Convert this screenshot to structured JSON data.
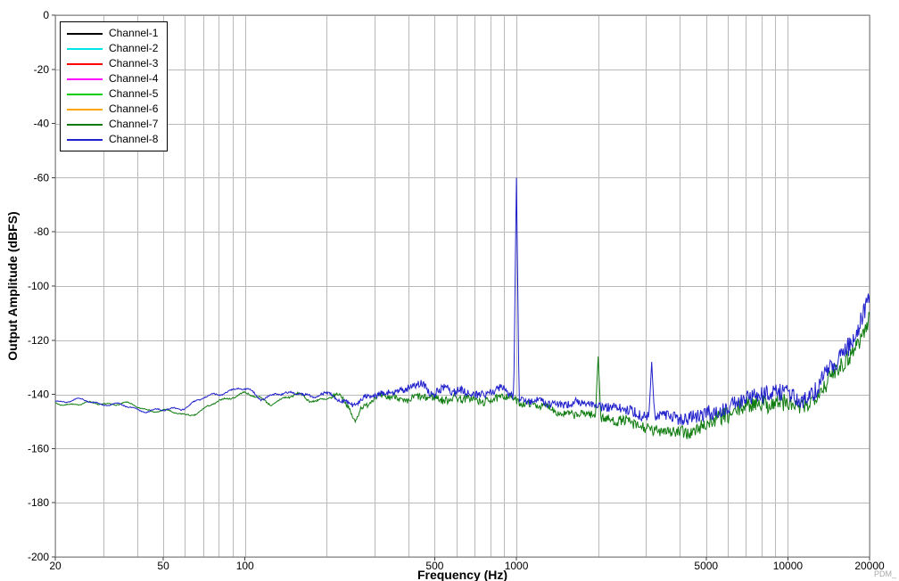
{
  "watermark": "PDM_",
  "chart_data": {
    "type": "line",
    "title": "",
    "xlabel": "Frequency (Hz)",
    "ylabel": "Output Amplitude (dBFS)",
    "x_scale": "log",
    "xlim": [
      20,
      20000
    ],
    "ylim": [
      -200,
      0
    ],
    "grid": true,
    "y_ticks": [
      0,
      -20,
      -40,
      -60,
      -80,
      -100,
      -120,
      -140,
      -160,
      -180,
      -200
    ],
    "x_gridlines": [
      20,
      30,
      40,
      50,
      60,
      70,
      80,
      90,
      100,
      200,
      300,
      400,
      500,
      600,
      700,
      800,
      900,
      1000,
      2000,
      3000,
      4000,
      5000,
      6000,
      7000,
      8000,
      9000,
      10000,
      20000
    ],
    "x_ticks": [
      {
        "value": 20,
        "label": "20"
      },
      {
        "value": 50,
        "label": "50"
      },
      {
        "value": 100,
        "label": "100"
      },
      {
        "value": 500,
        "label": "500"
      },
      {
        "value": 1000,
        "label": "1000"
      },
      {
        "value": 5000,
        "label": "5000"
      },
      {
        "value": 10000,
        "label": "10000"
      },
      {
        "value": 20000,
        "label": "20000"
      }
    ],
    "legend": {
      "position": "top-left",
      "entries": [
        {
          "label": "Channel-1",
          "color": "#000000"
        },
        {
          "label": "Channel-2",
          "color": "#00E5E5"
        },
        {
          "label": "Channel-3",
          "color": "#FF0000"
        },
        {
          "label": "Channel-4",
          "color": "#FF00FF"
        },
        {
          "label": "Channel-5",
          "color": "#00CC00"
        },
        {
          "label": "Channel-6",
          "color": "#FFA500"
        },
        {
          "label": "Channel-7",
          "color": "#107C10"
        },
        {
          "label": "Channel-8",
          "color": "#2020CC"
        }
      ]
    },
    "spike_halfwidth": 0.01,
    "noise": {
      "smooth_amp": [
        [
          20,
          1.0
        ],
        [
          80,
          1.3
        ],
        [
          150,
          1.5
        ],
        [
          400,
          1.6
        ],
        [
          1000,
          1.2
        ],
        [
          3000,
          1.0
        ],
        [
          20000,
          1.2
        ]
      ],
      "jitter_amp": [
        [
          20,
          0.15
        ],
        [
          100,
          0.25
        ],
        [
          200,
          0.5
        ],
        [
          350,
          1.3
        ],
        [
          600,
          1.6
        ],
        [
          900,
          1.4
        ],
        [
          1200,
          1.2
        ],
        [
          2000,
          1.6
        ],
        [
          3000,
          2.2
        ],
        [
          4500,
          2.6
        ],
        [
          6000,
          3.2
        ],
        [
          8000,
          3.4
        ],
        [
          10000,
          3.4
        ],
        [
          11500,
          3.0
        ],
        [
          13000,
          3.2
        ],
        [
          16000,
          3.6
        ],
        [
          20000,
          3.4
        ]
      ],
      "waves": [
        [
          0.55,
          41
        ],
        [
          0.35,
          89
        ],
        [
          0.25,
          17
        ]
      ]
    },
    "series": [
      {
        "name": "Channel-7",
        "color": "#107C10",
        "seed": 7,
        "spikes": [
          [
            2000,
            -126
          ]
        ],
        "envelope": [
          [
            20,
            -143
          ],
          [
            25,
            -143.5
          ],
          [
            30,
            -143
          ],
          [
            36,
            -144
          ],
          [
            44,
            -145.5
          ],
          [
            52,
            -146.5
          ],
          [
            60,
            -147
          ],
          [
            70,
            -146
          ],
          [
            80,
            -143
          ],
          [
            90,
            -140.5
          ],
          [
            100,
            -140
          ],
          [
            110,
            -141.5
          ],
          [
            125,
            -142.5
          ],
          [
            140,
            -141
          ],
          [
            160,
            -140.5
          ],
          [
            180,
            -142
          ],
          [
            200,
            -142
          ],
          [
            225,
            -141.5
          ],
          [
            240,
            -144
          ],
          [
            255,
            -150
          ],
          [
            268,
            -144
          ],
          [
            300,
            -142
          ],
          [
            330,
            -140.5
          ],
          [
            360,
            -140
          ],
          [
            400,
            -142.5
          ],
          [
            440,
            -142
          ],
          [
            480,
            -141.5
          ],
          [
            520,
            -141
          ],
          [
            570,
            -142
          ],
          [
            620,
            -142
          ],
          [
            680,
            -141.5
          ],
          [
            750,
            -141.5
          ],
          [
            820,
            -142
          ],
          [
            900,
            -141
          ],
          [
            1000,
            -142
          ],
          [
            1100,
            -143.5
          ],
          [
            1250,
            -145
          ],
          [
            1400,
            -146
          ],
          [
            1600,
            -147
          ],
          [
            1800,
            -147.5
          ],
          [
            2000,
            -148
          ],
          [
            2300,
            -149.5
          ],
          [
            2600,
            -151
          ],
          [
            3000,
            -152.5
          ],
          [
            3500,
            -153.5
          ],
          [
            4000,
            -154
          ],
          [
            4500,
            -153
          ],
          [
            5000,
            -151.5
          ],
          [
            5500,
            -149.5
          ],
          [
            6000,
            -147.5
          ],
          [
            6500,
            -146
          ],
          [
            7000,
            -144.5
          ],
          [
            7500,
            -143.5
          ],
          [
            8000,
            -143
          ],
          [
            8700,
            -142.5
          ],
          [
            9500,
            -142.5
          ],
          [
            10200,
            -143.5
          ],
          [
            10800,
            -145.5
          ],
          [
            11300,
            -145
          ],
          [
            12000,
            -142.5
          ],
          [
            13000,
            -139
          ],
          [
            14000,
            -135.5
          ],
          [
            15000,
            -132
          ],
          [
            16000,
            -128.5
          ],
          [
            17000,
            -125
          ],
          [
            18000,
            -121
          ],
          [
            19000,
            -116.5
          ],
          [
            20000,
            -112
          ]
        ]
      },
      {
        "name": "Channel-8",
        "color": "#2020CC",
        "seed": 8,
        "spikes": [
          [
            1000,
            -60
          ],
          [
            3150,
            -128
          ]
        ],
        "envelope": [
          [
            20,
            -142
          ],
          [
            25,
            -142.5
          ],
          [
            30,
            -143.5
          ],
          [
            36,
            -144.5
          ],
          [
            44,
            -145.5
          ],
          [
            50,
            -146
          ],
          [
            58,
            -145
          ],
          [
            66,
            -143
          ],
          [
            75,
            -141
          ],
          [
            85,
            -138.5
          ],
          [
            95,
            -137.5
          ],
          [
            105,
            -139
          ],
          [
            115,
            -141
          ],
          [
            130,
            -139.5
          ],
          [
            145,
            -141
          ],
          [
            160,
            -139.5
          ],
          [
            175,
            -140.5
          ],
          [
            190,
            -140
          ],
          [
            210,
            -141
          ],
          [
            230,
            -142
          ],
          [
            250,
            -142.5
          ],
          [
            275,
            -141.5
          ],
          [
            300,
            -141
          ],
          [
            330,
            -139.5
          ],
          [
            360,
            -138.5
          ],
          [
            390,
            -139.5
          ],
          [
            420,
            -137.5
          ],
          [
            450,
            -136.5
          ],
          [
            480,
            -138.5
          ],
          [
            510,
            -138
          ],
          [
            550,
            -137.5
          ],
          [
            590,
            -139.5
          ],
          [
            640,
            -139
          ],
          [
            700,
            -139.5
          ],
          [
            760,
            -140.5
          ],
          [
            830,
            -139.5
          ],
          [
            900,
            -138.5
          ],
          [
            960,
            -140
          ],
          [
            1000,
            -141
          ],
          [
            1050,
            -142
          ],
          [
            1150,
            -142.5
          ],
          [
            1300,
            -143
          ],
          [
            1500,
            -143
          ],
          [
            1700,
            -143.5
          ],
          [
            2000,
            -144
          ],
          [
            2300,
            -145
          ],
          [
            2600,
            -146
          ],
          [
            3000,
            -147
          ],
          [
            3400,
            -148
          ],
          [
            3800,
            -148.5
          ],
          [
            4200,
            -149
          ],
          [
            4700,
            -148.5
          ],
          [
            5200,
            -147.5
          ],
          [
            5800,
            -145.5
          ],
          [
            6400,
            -143.5
          ],
          [
            7000,
            -141.5
          ],
          [
            7600,
            -140.5
          ],
          [
            8200,
            -139.5
          ],
          [
            9000,
            -139
          ],
          [
            9800,
            -139.5
          ],
          [
            10400,
            -141
          ],
          [
            11000,
            -143.5
          ],
          [
            11500,
            -142.5
          ],
          [
            12200,
            -140
          ],
          [
            13000,
            -136.5
          ],
          [
            14000,
            -132.5
          ],
          [
            15000,
            -128.5
          ],
          [
            16000,
            -124.5
          ],
          [
            17000,
            -120.5
          ],
          [
            18000,
            -116
          ],
          [
            19000,
            -110.5
          ],
          [
            20000,
            -105
          ]
        ]
      }
    ]
  }
}
